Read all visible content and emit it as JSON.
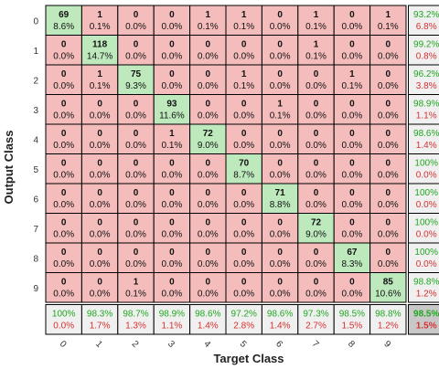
{
  "chart_data": {
    "type": "heatmap",
    "title": "",
    "xlabel": "Target Class",
    "ylabel": "Output Class",
    "classes": [
      "0",
      "1",
      "2",
      "3",
      "4",
      "5",
      "6",
      "7",
      "8",
      "9"
    ],
    "counts": [
      [
        69,
        1,
        0,
        0,
        1,
        1,
        0,
        1,
        0,
        1
      ],
      [
        0,
        118,
        0,
        0,
        0,
        0,
        0,
        1,
        0,
        0
      ],
      [
        0,
        1,
        75,
        0,
        0,
        1,
        0,
        0,
        1,
        0
      ],
      [
        0,
        0,
        0,
        93,
        0,
        0,
        1,
        0,
        0,
        0
      ],
      [
        0,
        0,
        0,
        1,
        72,
        0,
        0,
        0,
        0,
        0
      ],
      [
        0,
        0,
        0,
        0,
        0,
        70,
        0,
        0,
        0,
        0
      ],
      [
        0,
        0,
        0,
        0,
        0,
        0,
        71,
        0,
        0,
        0
      ],
      [
        0,
        0,
        0,
        0,
        0,
        0,
        0,
        72,
        0,
        0
      ],
      [
        0,
        0,
        0,
        0,
        0,
        0,
        0,
        0,
        67,
        0
      ],
      [
        0,
        0,
        1,
        0,
        0,
        0,
        0,
        0,
        0,
        85
      ]
    ],
    "percents": [
      [
        "8.6%",
        "0.1%",
        "0.0%",
        "0.0%",
        "0.1%",
        "0.1%",
        "0.0%",
        "0.1%",
        "0.0%",
        "0.1%"
      ],
      [
        "0.0%",
        "14.7%",
        "0.0%",
        "0.0%",
        "0.0%",
        "0.0%",
        "0.0%",
        "0.1%",
        "0.0%",
        "0.0%"
      ],
      [
        "0.0%",
        "0.1%",
        "9.3%",
        "0.0%",
        "0.0%",
        "0.1%",
        "0.0%",
        "0.0%",
        "0.1%",
        "0.0%"
      ],
      [
        "0.0%",
        "0.0%",
        "0.0%",
        "11.6%",
        "0.0%",
        "0.0%",
        "0.1%",
        "0.0%",
        "0.0%",
        "0.0%"
      ],
      [
        "0.0%",
        "0.0%",
        "0.0%",
        "0.1%",
        "9.0%",
        "0.0%",
        "0.0%",
        "0.0%",
        "0.0%",
        "0.0%"
      ],
      [
        "0.0%",
        "0.0%",
        "0.0%",
        "0.0%",
        "0.0%",
        "8.7%",
        "0.0%",
        "0.0%",
        "0.0%",
        "0.0%"
      ],
      [
        "0.0%",
        "0.0%",
        "0.0%",
        "0.0%",
        "0.0%",
        "0.0%",
        "8.8%",
        "0.0%",
        "0.0%",
        "0.0%"
      ],
      [
        "0.0%",
        "0.0%",
        "0.0%",
        "0.0%",
        "0.0%",
        "0.0%",
        "0.0%",
        "9.0%",
        "0.0%",
        "0.0%"
      ],
      [
        "0.0%",
        "0.0%",
        "0.0%",
        "0.0%",
        "0.0%",
        "0.0%",
        "0.0%",
        "0.0%",
        "8.3%",
        "0.0%"
      ],
      [
        "0.0%",
        "0.0%",
        "0.1%",
        "0.0%",
        "0.0%",
        "0.0%",
        "0.0%",
        "0.0%",
        "0.0%",
        "10.6%"
      ]
    ],
    "row_summary": [
      [
        "93.2%",
        "6.8%"
      ],
      [
        "99.2%",
        "0.8%"
      ],
      [
        "96.2%",
        "3.8%"
      ],
      [
        "98.9%",
        "1.1%"
      ],
      [
        "98.6%",
        "1.4%"
      ],
      [
        "100%",
        "0.0%"
      ],
      [
        "100%",
        "0.0%"
      ],
      [
        "100%",
        "0.0%"
      ],
      [
        "100%",
        "0.0%"
      ],
      [
        "98.8%",
        "1.2%"
      ]
    ],
    "col_summary": [
      [
        "100%",
        "0.0%"
      ],
      [
        "98.3%",
        "1.7%"
      ],
      [
        "98.7%",
        "1.3%"
      ],
      [
        "98.9%",
        "1.1%"
      ],
      [
        "98.6%",
        "1.4%"
      ],
      [
        "97.2%",
        "2.8%"
      ],
      [
        "98.6%",
        "1.4%"
      ],
      [
        "97.3%",
        "2.7%"
      ],
      [
        "98.5%",
        "1.5%"
      ],
      [
        "98.8%",
        "1.2%"
      ]
    ],
    "overall": [
      "98.5%",
      "1.5%"
    ],
    "colors": {
      "diagonal": "#bde9bd",
      "off_diagonal": "#f5bcbc",
      "summary": "#f0f0f0",
      "overall": "#c8c8c8",
      "correct_text": "#1fa81f",
      "error_text": "#d83030",
      "grid": "#000000"
    }
  }
}
